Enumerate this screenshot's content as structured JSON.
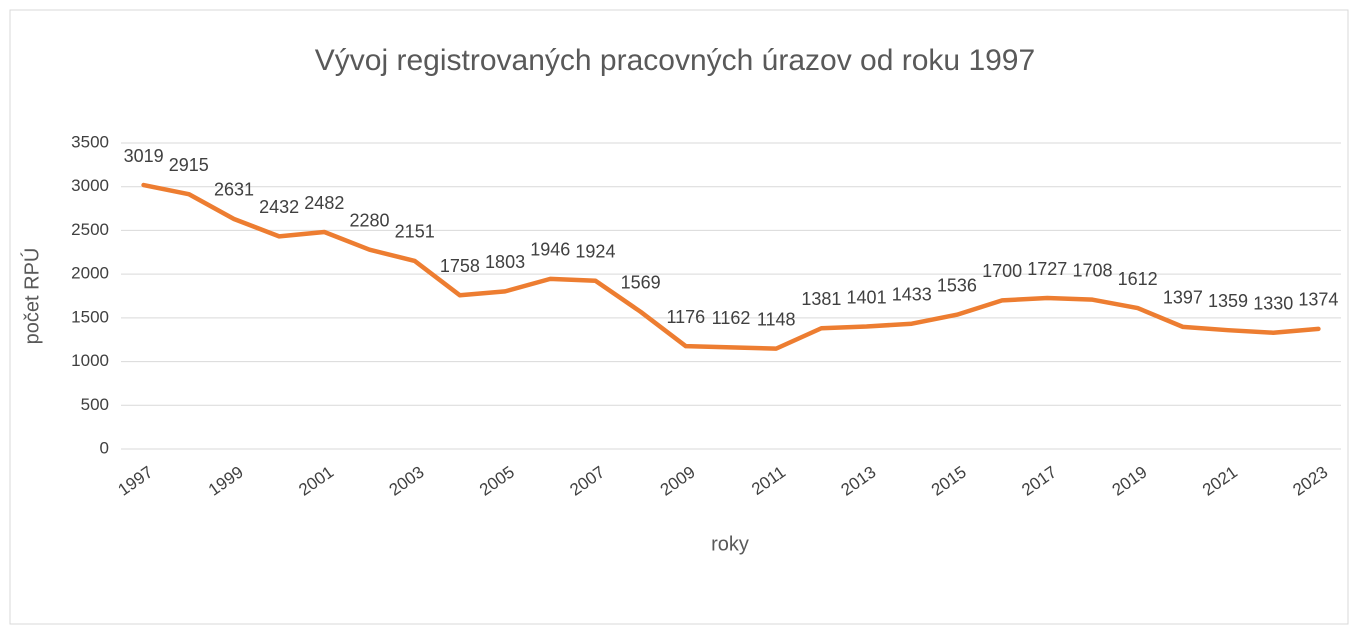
{
  "chart_data": {
    "type": "line",
    "title": "Vývoj registrovaných pracovných úrazov od roku 1997",
    "x_label": "roky",
    "y_label": "počet RPÚ",
    "categories": [
      "1997",
      null,
      "1999",
      null,
      "2001",
      null,
      "2003",
      null,
      "2005",
      null,
      "2007",
      null,
      "2009",
      null,
      "2011",
      null,
      "2013",
      null,
      "2015",
      null,
      "2017",
      null,
      "2019",
      null,
      "2021",
      null,
      "2023"
    ],
    "values": [
      3019,
      2915,
      2631,
      2432,
      2482,
      2280,
      2151,
      1758,
      1803,
      1946,
      1924,
      1569,
      1176,
      1162,
      1148,
      1381,
      1401,
      1433,
      1536,
      1700,
      1727,
      1708,
      1612,
      1397,
      1359,
      1330,
      1374
    ],
    "color": "#ed7d31",
    "ylim": [
      0,
      3500
    ],
    "yticks": [
      0,
      500,
      1000,
      1500,
      2000,
      2500,
      3000,
      3500
    ],
    "grid": true
  }
}
